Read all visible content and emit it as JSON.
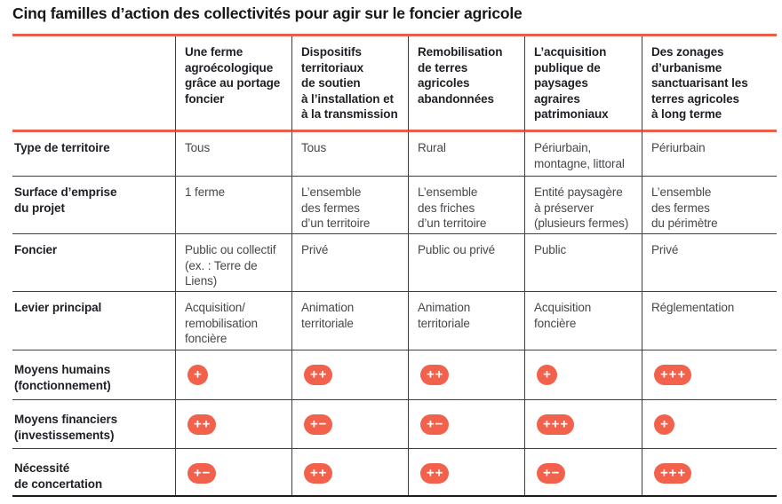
{
  "title": "Cinq familles d’action des collectivités pour agir sur le foncier agricole",
  "colors": {
    "accent_rule": "#e95f49",
    "badge": "#f2614c",
    "grid_line": "#3f3f3f",
    "header_text": "#1d1f24",
    "body_text": "#45474b"
  },
  "legend": {
    "plus_icon": "+",
    "minus_icon": "−"
  },
  "chart_data": {
    "type": "table",
    "title": "Cinq familles d’action des collectivités pour agir sur le foncier agricole",
    "columns": [
      "Une ferme\nagroécologique\ngrâce au portage\nfoncier",
      "Dispositifs\nterritoriaux\nde soutien\nà l’installation et\nà la transmission",
      "Remobilisation\nde terres\nagricoles\nabandonnées",
      "L’acquisition\npublique de\npaysages agraires\npatrimoniaux",
      "Des zonages\nd’urbanisme\nsanctuarisant les\nterres agricoles\nà long terme"
    ],
    "rows": [
      {
        "label": "Type de territoire",
        "kind": "text",
        "cells": [
          "Tous",
          "Tous",
          "Rural",
          "Périurbain,\nmontagne, littoral",
          "Périurbain"
        ]
      },
      {
        "label": "Surface d’emprise\ndu projet",
        "kind": "text",
        "cells": [
          "1 ferme",
          "L’ensemble\ndes fermes\nd’un territoire",
          "L’ensemble\ndes friches\nd’un territoire",
          "Entité paysagère\nà préserver\n(plusieurs fermes)",
          "L’ensemble\ndes fermes\ndu périmètre"
        ]
      },
      {
        "label": "Foncier",
        "kind": "text",
        "cells": [
          "Public ou collectif\n(ex. : Terre de\nLiens)",
          "Privé",
          "Public ou privé",
          "Public",
          "Privé"
        ]
      },
      {
        "label": "Levier principal",
        "kind": "text",
        "cells": [
          "Acquisition/\nremobilisation\nfoncière",
          "Animation\nterritoriale",
          "Animation\nterritoriale",
          "Acquisition\nfoncière",
          "Réglementation"
        ]
      },
      {
        "label": "Moyens humains\n(fonctionnement)",
        "kind": "badge",
        "cells": [
          "+",
          "++",
          "++",
          "+",
          "+++"
        ]
      },
      {
        "label": "Moyens financiers\n(investissements)",
        "kind": "badge",
        "cells": [
          "++",
          "+-",
          "+-",
          "+++",
          "+"
        ]
      },
      {
        "label": "Nécessité\nde concertation",
        "kind": "badge",
        "cells": [
          "+-",
          "++",
          "++",
          "+-",
          "+++"
        ]
      }
    ]
  }
}
